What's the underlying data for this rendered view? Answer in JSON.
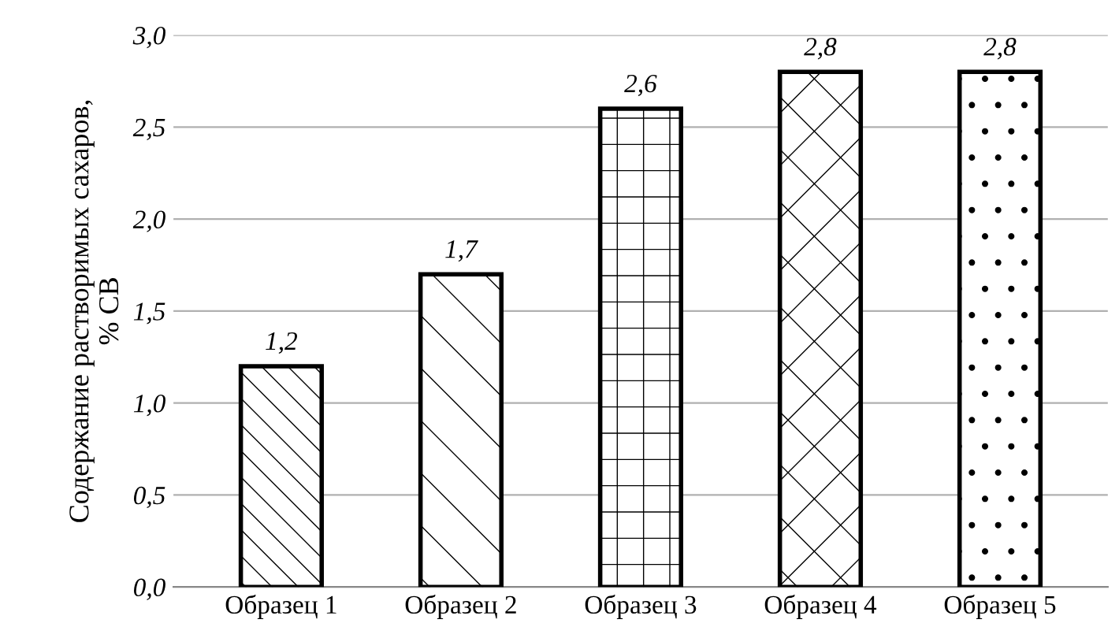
{
  "chart_data": {
    "type": "bar",
    "ylabel": "Содержание растворимых сахаров,\n% СВ",
    "categories": [
      "Образец 1",
      "Образец 2",
      "Образец 3",
      "Образец 4",
      "Образец 5"
    ],
    "values": [
      1.2,
      1.7,
      2.6,
      2.8,
      2.8
    ],
    "value_labels": [
      "1,2",
      "1,7",
      "2,6",
      "2,8",
      "2,8"
    ],
    "color": "#000000",
    "ylim": [
      0,
      3
    ],
    "yticks": [
      {
        "value": 0,
        "label": "0,0"
      },
      {
        "value": 0.5,
        "label": "0,5"
      },
      {
        "value": 1,
        "label": "1,0"
      },
      {
        "value": 1.5,
        "label": "1,5"
      },
      {
        "value": 2,
        "label": "2,0"
      },
      {
        "value": 2.5,
        "label": "2,5"
      },
      {
        "value": 3,
        "label": "3,0"
      }
    ],
    "grid": "y"
  }
}
